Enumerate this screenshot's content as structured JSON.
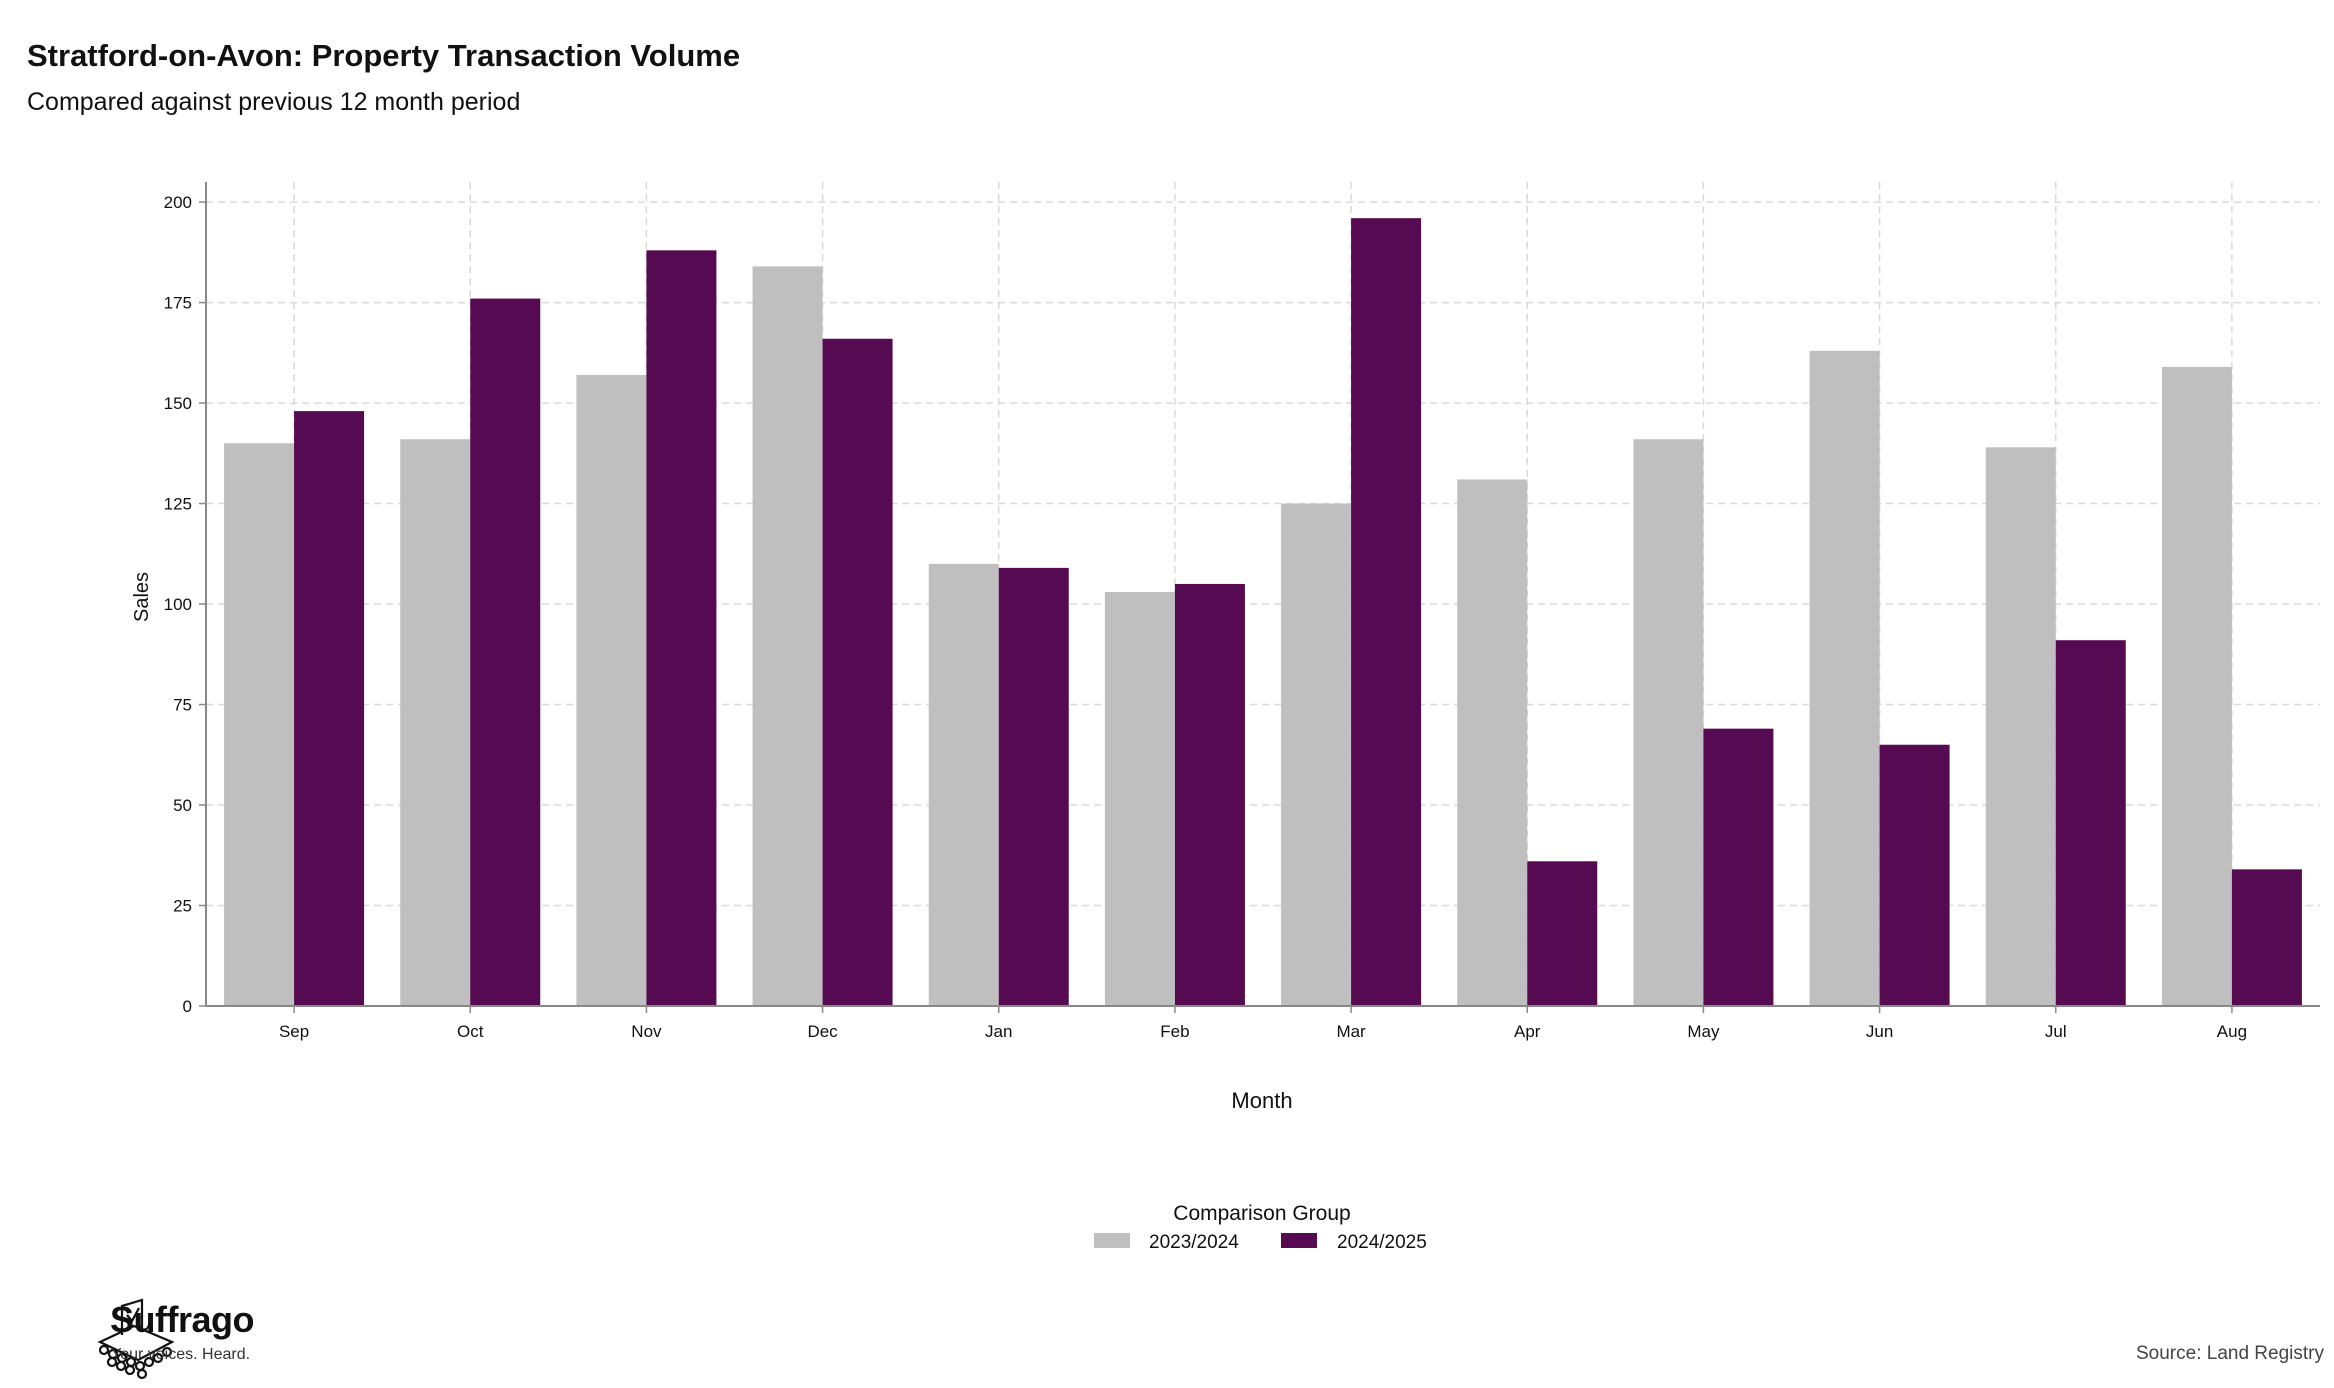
{
  "header": {
    "title": "Stratford-on-Avon: Property Transaction Volume",
    "subtitle": "Compared against previous 12 month period"
  },
  "footer": {
    "brand": "Suffrago",
    "tagline": "Your voices. Heard.",
    "source": "Source: Land Registry"
  },
  "colors": {
    "series_2023_2024": "#bfbfbf",
    "series_2024_2025": "#560a52",
    "grid": "#d9d9d9",
    "axis": "#888888"
  },
  "chart_data": {
    "type": "bar",
    "title": "Stratford-on-Avon: Property Transaction Volume",
    "subtitle": "Compared against previous 12 month period",
    "xlabel": "Month",
    "ylabel": "Sales",
    "categories": [
      "Sep",
      "Oct",
      "Nov",
      "Dec",
      "Jan",
      "Feb",
      "Mar",
      "Apr",
      "May",
      "Jun",
      "Jul",
      "Aug"
    ],
    "series": [
      {
        "name": "2023/2024",
        "color": "#bfbfbf",
        "values": [
          140,
          141,
          157,
          184,
          110,
          103,
          125,
          131,
          141,
          163,
          139,
          159
        ]
      },
      {
        "name": "2024/2025",
        "color": "#560a52",
        "values": [
          148,
          176,
          188,
          166,
          109,
          105,
          196,
          36,
          69,
          65,
          91,
          34
        ]
      }
    ],
    "ylim": [
      0,
      205
    ],
    "yticks": [
      0,
      25,
      50,
      75,
      100,
      125,
      150,
      175,
      200
    ],
    "grid": true,
    "legend": {
      "title": "Comparison Group",
      "position": "bottom-center"
    }
  }
}
